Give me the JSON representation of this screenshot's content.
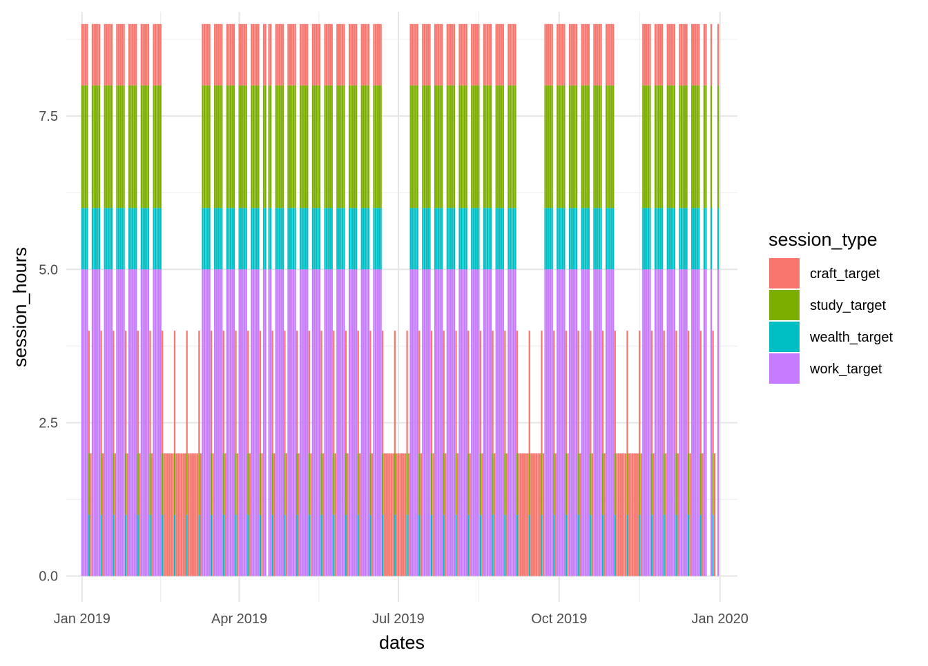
{
  "chart_data": {
    "type": "bar",
    "stacked": true,
    "xlabel": "dates",
    "ylabel": "session_hours",
    "ylim": [
      -0.42,
      9.2
    ],
    "xlim": [
      "2018-12-23",
      "2020-01-11"
    ],
    "x_ticks": [
      {
        "date": "2019-01-01",
        "label": "Jan 2019"
      },
      {
        "date": "2019-04-01",
        "label": "Apr 2019"
      },
      {
        "date": "2019-07-01",
        "label": "Jul 2019"
      },
      {
        "date": "2019-10-01",
        "label": "Oct 2019"
      },
      {
        "date": "2020-01-01",
        "label": "Jan 2020"
      }
    ],
    "y_ticks": [
      {
        "value": 0,
        "label": "0.0"
      },
      {
        "value": 2.5,
        "label": "2.5"
      },
      {
        "value": 5,
        "label": "5.0"
      },
      {
        "value": 7.5,
        "label": "7.5"
      }
    ],
    "grid": true,
    "legend_position": "right",
    "legend_title": "session_type",
    "series": [
      {
        "name": "craft_target",
        "color": "#F8766D"
      },
      {
        "name": "study_target",
        "color": "#7CAE00"
      },
      {
        "name": "wealth_target",
        "color": "#00BFC4"
      },
      {
        "name": "work_target",
        "color": "#C77CFF"
      }
    ],
    "weekday_stack": {
      "work_target": 5,
      "wealth_target": 1,
      "study_target": 2,
      "craft_target": 1
    },
    "saturday_stack": {
      "wealth_target": 1,
      "study_target": 1,
      "craft_target": 2
    },
    "sunday_stack": {
      "craft_target": 2
    },
    "date_range": [
      "2019-01-01",
      "2019-12-31"
    ],
    "vacation_periods": [
      {
        "start": "2019-02-18",
        "end": "2019-03-10"
      },
      {
        "start": "2019-06-24",
        "end": "2019-07-07"
      },
      {
        "start": "2019-09-09",
        "end": "2019-09-22"
      },
      {
        "start": "2019-11-04",
        "end": "2019-11-17"
      }
    ],
    "skipped_dates": [
      "2019-04-17",
      "2019-12-25",
      "2019-12-26",
      "2019-12-30"
    ]
  }
}
